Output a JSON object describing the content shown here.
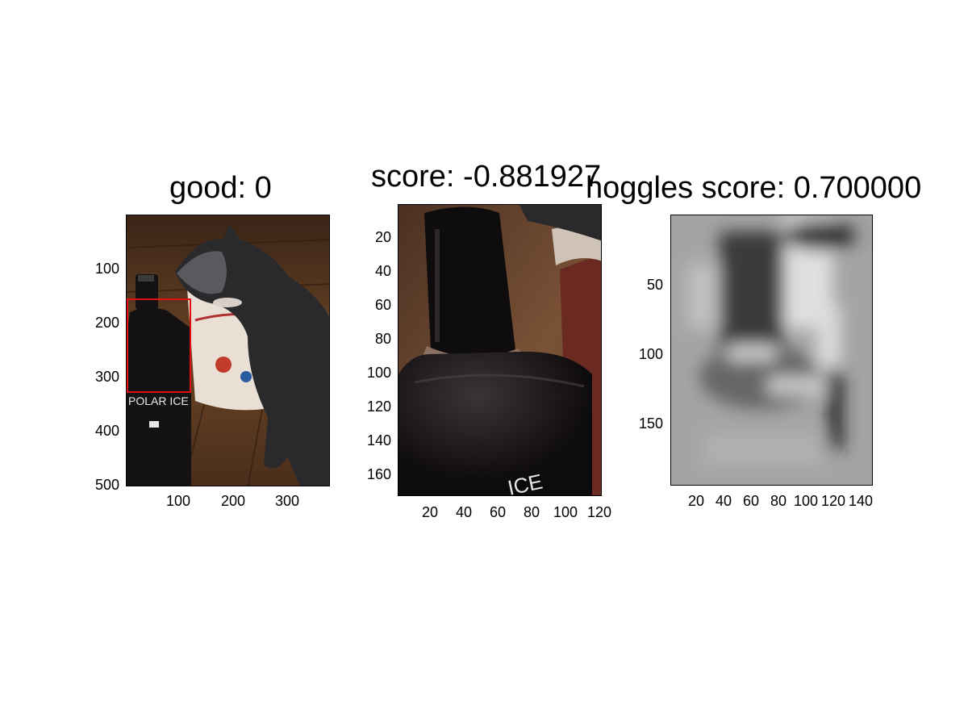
{
  "panels": [
    {
      "title": "good: 0",
      "yticks": [
        "100",
        "200",
        "300",
        "400",
        "500"
      ],
      "xticks": [
        "100",
        "200",
        "300"
      ]
    },
    {
      "title": "score: -0.881927",
      "yticks": [
        "20",
        "40",
        "60",
        "80",
        "100",
        "120",
        "140",
        "160"
      ],
      "xticks": [
        "20",
        "40",
        "60",
        "80",
        "100",
        "120"
      ],
      "bottle_text": "ICE"
    },
    {
      "title": "hoggles score: 0.700000",
      "yticks": [
        "50",
        "100",
        "150"
      ],
      "xticks": [
        "20",
        "40",
        "60",
        "80",
        "100",
        "120",
        "140"
      ]
    }
  ],
  "photo_text": "POLAR ICE",
  "colors": {
    "bbox": "#e01010",
    "bottle": "#151214",
    "floor": "#5a3a22",
    "cat": "#2c2b2e"
  }
}
